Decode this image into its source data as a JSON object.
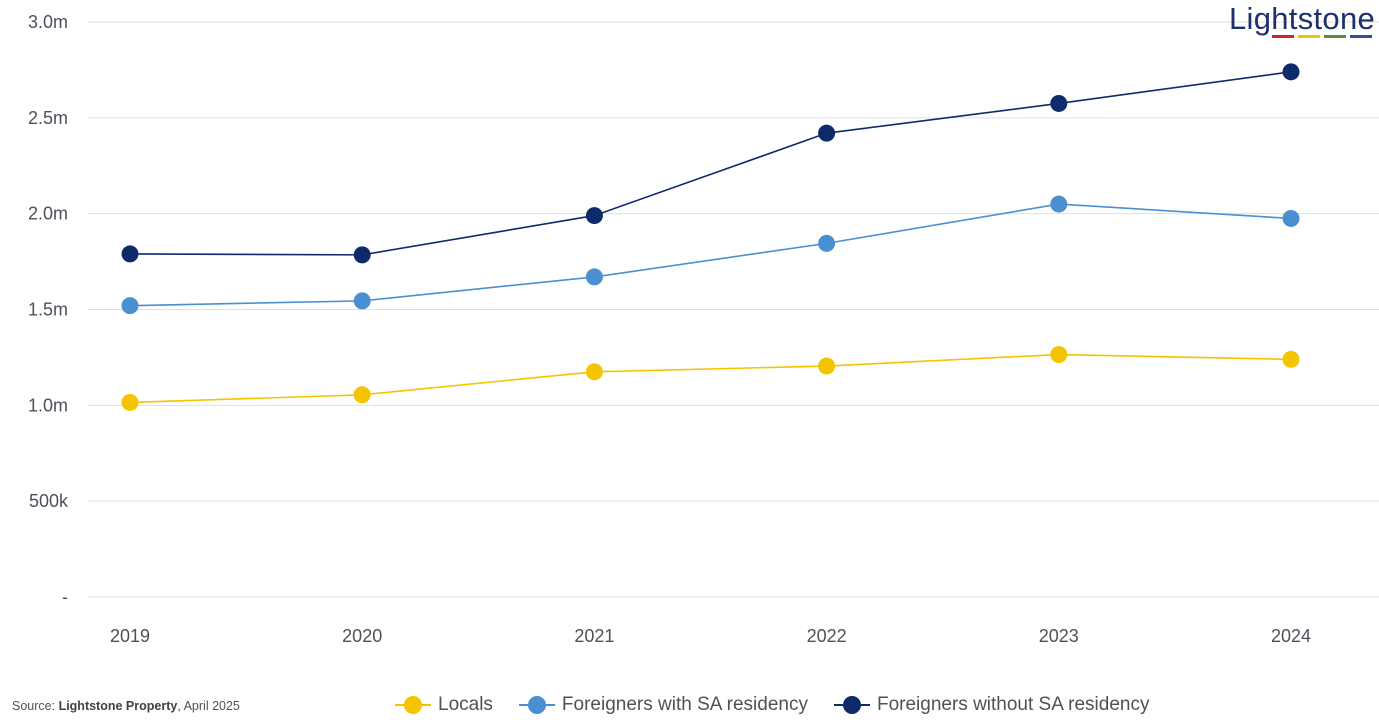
{
  "brand": {
    "logo_text": "Lightstone",
    "bar_colors": [
      "#d0262a",
      "#f2c400",
      "#5f8a3a",
      "#2f4ea0"
    ]
  },
  "source": {
    "prefix": "Source: ",
    "name": "Lightstone Property",
    "suffix": ", April 2025"
  },
  "chart_data": {
    "type": "line",
    "title": "",
    "xlabel": "",
    "ylabel": "",
    "categories": [
      "2019",
      "2020",
      "2021",
      "2022",
      "2023",
      "2024"
    ],
    "ylim": [
      0,
      3000000
    ],
    "y_ticks": [
      {
        "value": 0,
        "label": "-"
      },
      {
        "value": 500000,
        "label": "500k"
      },
      {
        "value": 1000000,
        "label": "1.0m"
      },
      {
        "value": 1500000,
        "label": "1.5m"
      },
      {
        "value": 2000000,
        "label": "2.0m"
      },
      {
        "value": 2500000,
        "label": "2.5m"
      },
      {
        "value": 3000000,
        "label": "3.0m"
      }
    ],
    "grid": true,
    "legend_position": "bottom",
    "series": [
      {
        "name": "Locals",
        "color": "#f5c400",
        "values": [
          1015000,
          1055000,
          1175000,
          1205000,
          1265000,
          1240000
        ]
      },
      {
        "name": "Foreigners with SA residency",
        "color": "#4a90d0",
        "values": [
          1520000,
          1545000,
          1670000,
          1845000,
          2050000,
          1975000
        ]
      },
      {
        "name": "Foreigners without SA residency",
        "color": "#0f2a6b",
        "values": [
          1790000,
          1785000,
          1990000,
          2420000,
          2575000,
          2740000
        ]
      }
    ]
  }
}
